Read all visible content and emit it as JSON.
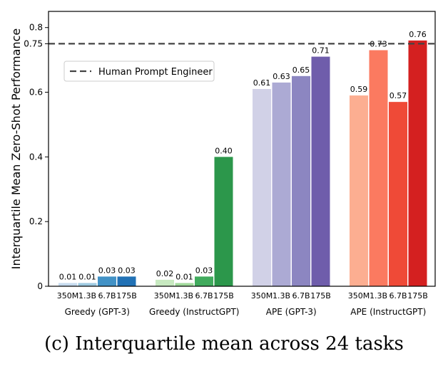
{
  "caption": "(c) Interquartile mean across 24 tasks",
  "chart_data": {
    "type": "bar",
    "ylabel": "Interquartile Mean Zero-Shot Performance",
    "ylim": [
      0,
      0.85
    ],
    "yticks": [
      0,
      0.2,
      0.4,
      0.6,
      0.75,
      0.8
    ],
    "ytick_labels": [
      "0",
      "0.2",
      "0.4",
      "0.6",
      "0.75",
      "0.8"
    ],
    "model_sizes": [
      "350M",
      "1.3B",
      "6.7B",
      "175B"
    ],
    "reference_line": {
      "value": 0.75,
      "label": "Human Prompt Engineer",
      "color": "#444444",
      "style": "dashed"
    },
    "legend_position": "upper-left",
    "groups": [
      {
        "name": "Greedy (GPT-3)",
        "values": [
          0.01,
          0.01,
          0.03,
          0.03
        ],
        "labels": [
          "0.01",
          "0.01",
          "0.03",
          "0.03"
        ],
        "colors": [
          "#c6dbef",
          "#9ecae1",
          "#4292c6",
          "#2171b5"
        ]
      },
      {
        "name": "Greedy (InstructGPT)",
        "values": [
          0.02,
          0.01,
          0.03,
          0.4
        ],
        "labels": [
          "0.02",
          "0.01",
          "0.03",
          "0.40"
        ],
        "colors": [
          "#c7e9c0",
          "#a1d99b",
          "#41ab5d",
          "#2c974b"
        ]
      },
      {
        "name": "APE (GPT-3)",
        "values": [
          0.61,
          0.63,
          0.65,
          0.71
        ],
        "labels": [
          "0.61",
          "0.63",
          "0.65",
          "0.71"
        ],
        "colors": [
          "#d1d1e7",
          "#acaad4",
          "#8c86c1",
          "#6f5dab"
        ]
      },
      {
        "name": "APE (InstructGPT)",
        "values": [
          0.59,
          0.73,
          0.57,
          0.76
        ],
        "labels": [
          "0.59",
          "0.73",
          "0.57",
          "0.76"
        ],
        "colors": [
          "#fcae91",
          "#fb7a60",
          "#ef4a37",
          "#d42020"
        ]
      }
    ]
  }
}
